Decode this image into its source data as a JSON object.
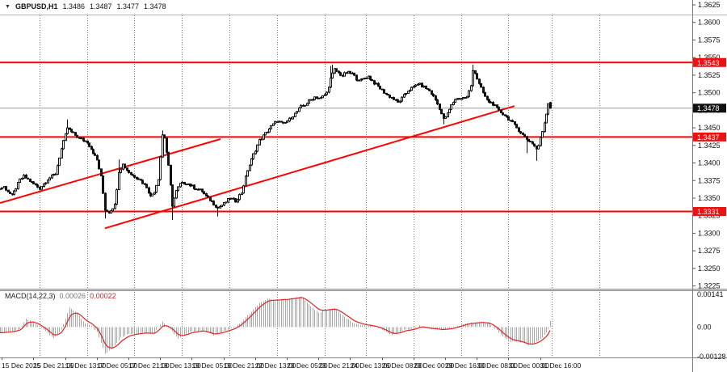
{
  "header": {
    "dropdown_icon": "▼",
    "symbol": "GBPUSD,H1",
    "open": "1.3486",
    "high": "1.3487",
    "low": "1.3477",
    "close": "1.3478"
  },
  "macd_panel": {
    "label": "MACD(14,22,3)",
    "value_main": "0.00026",
    "value_signal": "0.00022",
    "scale_max": "0.00141",
    "scale_zero": "0.00",
    "scale_min": "-0.00128"
  },
  "colors": {
    "level_line": "#ff0000",
    "trend_line": "#ff0000",
    "price_box_red": "#ee1111",
    "price_box_black": "#111111",
    "candle": "#111111",
    "bid_line": "#9a9a9a",
    "grid": "#777777",
    "axis_border": "#808080",
    "macd_hist": "#a8a8a8",
    "macd_signal": "#e22222",
    "axis_text": "#111111"
  },
  "chart_data": {
    "type": "candlestick",
    "instrument": "GBPUSD",
    "timeframe": "H1",
    "candle_count": 283,
    "price_axis": {
      "max": 1.3625,
      "min": 1.3225,
      "step": 0.0025,
      "ticks": [
        "1.3625",
        "1.3600",
        "1.3575",
        "1.3550",
        "1.3525",
        "1.3500",
        "1.3475",
        "1.3450",
        "1.3425",
        "1.3400",
        "1.3375",
        "1.3350",
        "1.3325",
        "1.3300",
        "1.3275",
        "1.3250",
        "1.3225"
      ]
    },
    "levels": [
      {
        "price": 1.3543,
        "label": "1.3543",
        "kind": "resistance"
      },
      {
        "price": 1.3437,
        "label": "1.3437",
        "kind": "support"
      },
      {
        "price": 1.3331,
        "label": "1.3331",
        "kind": "support"
      }
    ],
    "bid": {
      "price": 1.3478,
      "label": "1.3478"
    },
    "trendlines": [
      {
        "i1": 4.1,
        "p1": 1.3343,
        "i2": 115.5,
        "p2": 1.3434
      },
      {
        "i1": 57.1,
        "p1": 1.3307,
        "i2": 264.0,
        "p2": 1.3481
      }
    ],
    "time_labels": [
      {
        "text": "15 Dec 2025",
        "i": 0
      },
      {
        "text": "15 Dec 21:00",
        "i": 21
      },
      {
        "text": "16 Dec 13:00",
        "i": 37
      },
      {
        "text": "17 Dec 05:00",
        "i": 53
      },
      {
        "text": "17 Dec 21:00",
        "i": 69
      },
      {
        "text": "18 Dec 13:00",
        "i": 85
      },
      {
        "text": "19 Dec 05:00",
        "i": 101
      },
      {
        "text": "19 Dec 21:00",
        "i": 117
      },
      {
        "text": "22 Dec 13:00",
        "i": 133
      },
      {
        "text": "23 Dec 05:00",
        "i": 149
      },
      {
        "text": "23 Dec 21:00",
        "i": 165
      },
      {
        "text": "24 Dec 13:00",
        "i": 181
      },
      {
        "text": "26 Dec 08:00",
        "i": 197
      },
      {
        "text": "29 Dec 00:00",
        "i": 213
      },
      {
        "text": "29 Dec 16:00",
        "i": 229
      },
      {
        "text": "30 Dec 08:00",
        "i": 245
      },
      {
        "text": "31 Dec 00:00",
        "i": 261
      },
      {
        "text": "31 Dec 16:00",
        "i": 277
      }
    ],
    "day_separators_i": [
      24,
      48,
      72,
      96,
      120,
      144,
      168,
      189,
      213,
      237,
      261,
      283,
      307
    ],
    "price_path": [
      [
        0,
        1.336
      ],
      [
        6,
        1.3366
      ],
      [
        10,
        1.3353
      ],
      [
        14,
        1.3376
      ],
      [
        16,
        1.3381
      ],
      [
        20,
        1.3372
      ],
      [
        24,
        1.3364
      ],
      [
        28,
        1.3377
      ],
      [
        32,
        1.3385
      ],
      [
        35,
        1.342
      ],
      [
        38,
        1.345
      ],
      [
        40,
        1.3444
      ],
      [
        44,
        1.3435
      ],
      [
        48,
        1.343
      ],
      [
        50,
        1.342
      ],
      [
        53,
        1.3404
      ],
      [
        55,
        1.338
      ],
      [
        57,
        1.3334
      ],
      [
        59,
        1.333
      ],
      [
        62,
        1.334
      ],
      [
        64,
        1.3388
      ],
      [
        66,
        1.3398
      ],
      [
        68,
        1.339
      ],
      [
        70,
        1.3384
      ],
      [
        74,
        1.3378
      ],
      [
        78,
        1.3366
      ],
      [
        80,
        1.3352
      ],
      [
        82,
        1.336
      ],
      [
        84,
        1.3378
      ],
      [
        86,
        1.344
      ],
      [
        87,
        1.3436
      ],
      [
        89,
        1.3395
      ],
      [
        91,
        1.334
      ],
      [
        93,
        1.336
      ],
      [
        95,
        1.337
      ],
      [
        98,
        1.3372
      ],
      [
        102,
        1.3365
      ],
      [
        106,
        1.336
      ],
      [
        108,
        1.3352
      ],
      [
        111,
        1.3345
      ],
      [
        114,
        1.3336
      ],
      [
        117,
        1.3342
      ],
      [
        120,
        1.335
      ],
      [
        123,
        1.3346
      ],
      [
        126,
        1.3358
      ],
      [
        129,
        1.339
      ],
      [
        132,
        1.3412
      ],
      [
        135,
        1.3432
      ],
      [
        138,
        1.3442
      ],
      [
        141,
        1.3452
      ],
      [
        144,
        1.346
      ],
      [
        147,
        1.3455
      ],
      [
        150,
        1.3462
      ],
      [
        153,
        1.347
      ],
      [
        156,
        1.348
      ],
      [
        158,
        1.3483
      ],
      [
        160,
        1.3488
      ],
      [
        163,
        1.3494
      ],
      [
        166,
        1.3492
      ],
      [
        169,
        1.35
      ],
      [
        171,
        1.352
      ],
      [
        173,
        1.3533
      ],
      [
        175,
        1.3528
      ],
      [
        177,
        1.3524
      ],
      [
        179,
        1.3529
      ],
      [
        182,
        1.3527
      ],
      [
        184,
        1.352
      ],
      [
        186,
        1.3517
      ],
      [
        188,
        1.3521
      ],
      [
        190,
        1.3523
      ],
      [
        193,
        1.3514
      ],
      [
        196,
        1.3506
      ],
      [
        199,
        1.3498
      ],
      [
        202,
        1.3493
      ],
      [
        205,
        1.3486
      ],
      [
        207,
        1.3492
      ],
      [
        210,
        1.3503
      ],
      [
        213,
        1.3508
      ],
      [
        215,
        1.3513
      ],
      [
        218,
        1.3508
      ],
      [
        221,
        1.3503
      ],
      [
        224,
        1.349
      ],
      [
        226,
        1.3478
      ],
      [
        228,
        1.3462
      ],
      [
        230,
        1.347
      ],
      [
        232,
        1.3482
      ],
      [
        234,
        1.3491
      ],
      [
        237,
        1.3492
      ],
      [
        240,
        1.3494
      ],
      [
        242,
        1.351
      ],
      [
        243,
        1.3533
      ],
      [
        244,
        1.3528
      ],
      [
        246,
        1.3512
      ],
      [
        248,
        1.35
      ],
      [
        250,
        1.3489
      ],
      [
        253,
        1.3484
      ],
      [
        256,
        1.3474
      ],
      [
        259,
        1.3468
      ],
      [
        262,
        1.346
      ],
      [
        265,
        1.345
      ],
      [
        268,
        1.344
      ],
      [
        270,
        1.3434
      ],
      [
        273,
        1.3428
      ],
      [
        275,
        1.342
      ],
      [
        276,
        1.3425
      ],
      [
        278,
        1.3445
      ],
      [
        279,
        1.3458
      ],
      [
        280,
        1.347
      ],
      [
        281,
        1.3486
      ],
      [
        282,
        1.3478
      ]
    ],
    "wick_extremes": [
      [
        38,
        "hi",
        1.3462
      ],
      [
        57,
        "lo",
        1.3321
      ],
      [
        64,
        "hi",
        1.3405
      ],
      [
        86,
        "hi",
        1.3446
      ],
      [
        91,
        "lo",
        1.3319
      ],
      [
        114,
        "lo",
        1.3324
      ],
      [
        171,
        "hi",
        1.3538
      ],
      [
        172,
        "hi",
        1.354
      ],
      [
        228,
        "lo",
        1.3455
      ],
      [
        243,
        "hi",
        1.354
      ],
      [
        270,
        "lo",
        1.3414
      ],
      [
        275,
        "lo",
        1.3403
      ]
    ],
    "last_candle": {
      "open": 1.3486,
      "high": 1.3487,
      "low": 1.3477,
      "close": 1.3478
    },
    "macd": {
      "params": "14,22,3",
      "scale_max": 0.00141,
      "scale_min": -0.00128,
      "anchors_1e5": [
        [
          0,
          -22
        ],
        [
          4,
          -25
        ],
        [
          10,
          -18
        ],
        [
          14,
          -8
        ],
        [
          17,
          35
        ],
        [
          20,
          25
        ],
        [
          22,
          15
        ],
        [
          26,
          -10
        ],
        [
          31,
          -50
        ],
        [
          35,
          -10
        ],
        [
          39,
          85
        ],
        [
          43,
          60
        ],
        [
          47,
          15
        ],
        [
          50,
          5
        ],
        [
          53,
          -20
        ],
        [
          57,
          -115
        ],
        [
          61,
          -90
        ],
        [
          65,
          -45
        ],
        [
          69,
          -30
        ],
        [
          76,
          -25
        ],
        [
          82,
          -28
        ],
        [
          86,
          25
        ],
        [
          90,
          -10
        ],
        [
          94,
          -50
        ],
        [
          100,
          -20
        ],
        [
          106,
          -15
        ],
        [
          112,
          -35
        ],
        [
          118,
          -15
        ],
        [
          123,
          0
        ],
        [
          129,
          50
        ],
        [
          135,
          105
        ],
        [
          139,
          122
        ],
        [
          143,
          118
        ],
        [
          148,
          120
        ],
        [
          152,
          125
        ],
        [
          156,
          130
        ],
        [
          161,
          90
        ],
        [
          165,
          62
        ],
        [
          169,
          75
        ],
        [
          173,
          80
        ],
        [
          178,
          45
        ],
        [
          183,
          15
        ],
        [
          187,
          8
        ],
        [
          192,
          5
        ],
        [
          196,
          -5
        ],
        [
          202,
          -35
        ],
        [
          208,
          -12
        ],
        [
          213,
          -8
        ],
        [
          216,
          8
        ],
        [
          220,
          -5
        ],
        [
          227,
          -12
        ],
        [
          232,
          -5
        ],
        [
          237,
          10
        ],
        [
          242,
          20
        ],
        [
          247,
          22
        ],
        [
          251,
          15
        ],
        [
          254,
          -5
        ],
        [
          258,
          -40
        ],
        [
          262,
          -62
        ],
        [
          267,
          -65
        ],
        [
          271,
          -78
        ],
        [
          274,
          -70
        ],
        [
          278,
          -45
        ],
        [
          281,
          -10
        ],
        [
          282,
          26
        ]
      ]
    }
  }
}
